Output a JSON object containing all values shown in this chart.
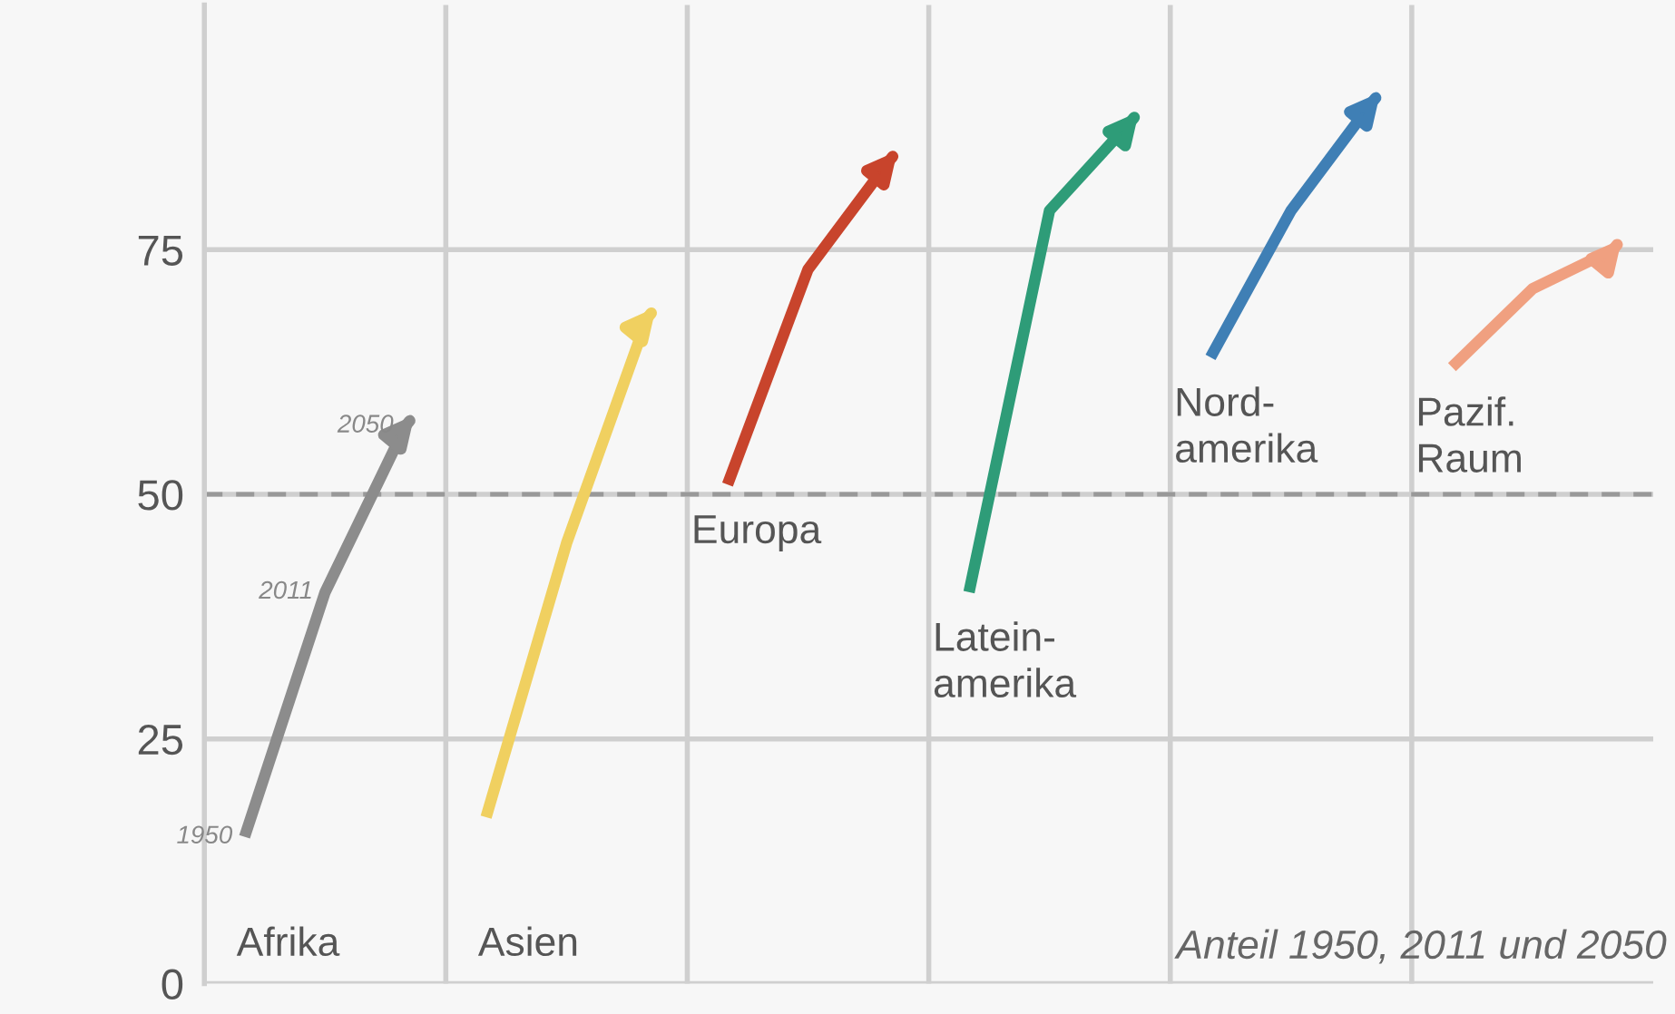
{
  "chart_data": {
    "type": "line",
    "categories": [
      null,
      null,
      null,
      null,
      null,
      null,
      null,
      null,
      null,
      null,
      null,
      null,
      null,
      null,
      null,
      null,
      null,
      null
    ],
    "series": [
      {
        "name": "Afrika",
        "color": "#8c8c8c",
        "values": [
          15,
          40,
          57,
          null,
          null,
          null,
          null,
          null,
          null,
          null,
          null,
          null,
          null,
          null,
          null,
          null,
          null,
          null
        ]
      },
      {
        "name": "Asien",
        "color": "#f0d060",
        "values": [
          null,
          null,
          null,
          17,
          45,
          68,
          null,
          null,
          null,
          null,
          null,
          null,
          null,
          null,
          null,
          null,
          null,
          null
        ]
      },
      {
        "name": "Europa",
        "color": "#c8442c",
        "values": [
          null,
          null,
          null,
          null,
          null,
          null,
          51,
          73,
          84,
          null,
          null,
          null,
          null,
          null,
          null,
          null,
          null,
          null
        ]
      },
      {
        "name": "Latein-\namerika",
        "color": "#2e9c78",
        "values": [
          null,
          null,
          null,
          null,
          null,
          null,
          null,
          null,
          null,
          40,
          79,
          88,
          null,
          null,
          null,
          null,
          null,
          null
        ]
      },
      {
        "name": "Nord-\namerika",
        "color": "#3f7fb5",
        "values": [
          null,
          null,
          null,
          null,
          null,
          null,
          null,
          null,
          null,
          null,
          null,
          null,
          64,
          79,
          90,
          null,
          null,
          null
        ]
      },
      {
        "name": "Pazif.\nRaum",
        "color": "#f0a080",
        "values": [
          null,
          null,
          null,
          null,
          null,
          null,
          null,
          null,
          null,
          null,
          null,
          null,
          null,
          null,
          null,
          63,
          71,
          75
        ]
      }
    ],
    "ylim": [
      0,
      100
    ],
    "yticks": [
      0,
      25,
      50,
      75
    ],
    "grid": "y",
    "ref_lines": [
      {
        "axis": "y",
        "value": 50,
        "line_style": "dashed"
      }
    ],
    "annotations": [
      "1950",
      "2011",
      "2050",
      "Anteil 1950, 2011 und 2050"
    ]
  }
}
